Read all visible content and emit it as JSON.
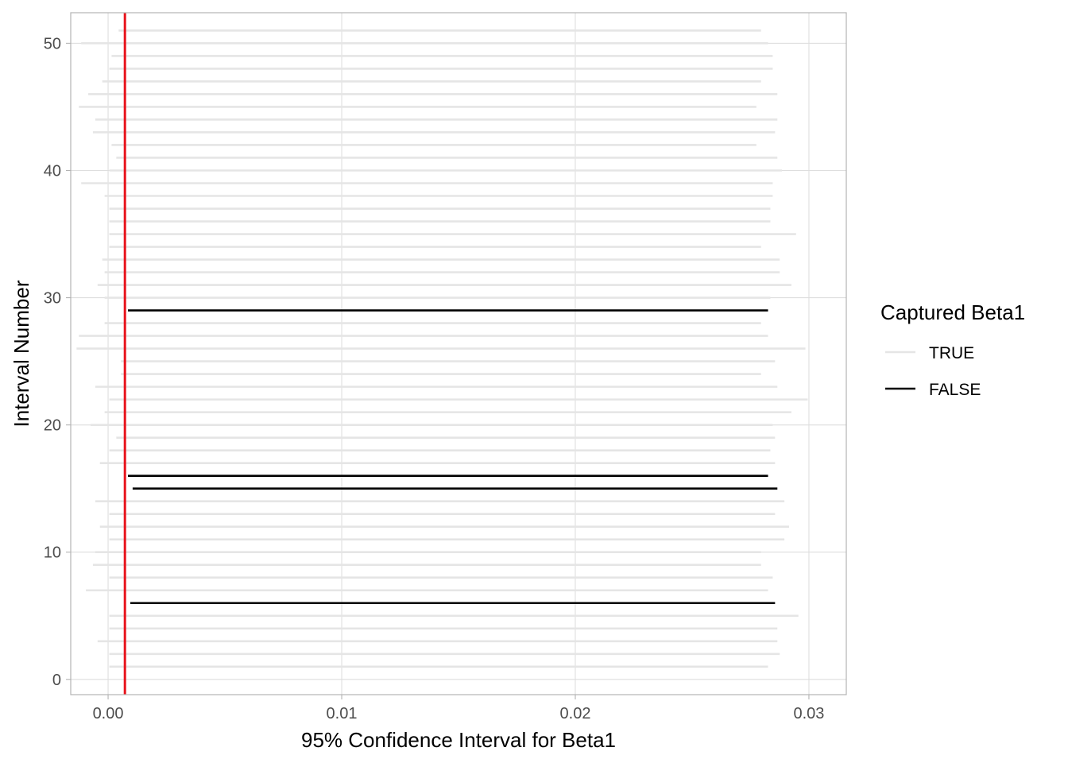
{
  "chart_data": {
    "type": "line",
    "description": "Horizontal segments: one 95% confidence interval per interval number",
    "xlabel": "95% Confidence Interval for Beta1",
    "ylabel": "Interval Number",
    "xlim": [
      -0.0016,
      0.0316
    ],
    "ylim": [
      -1.2,
      52.4
    ],
    "x_ticks": [
      0.0,
      0.01,
      0.02,
      0.03
    ],
    "x_tick_labels": [
      "0.00",
      "0.01",
      "0.02",
      "0.03"
    ],
    "y_ticks": [
      0,
      10,
      20,
      30,
      40,
      50
    ],
    "y_tick_labels": [
      "0",
      "10",
      "20",
      "30",
      "40",
      "50"
    ],
    "grid": true,
    "reference_line": {
      "x": 0.00072,
      "color": "#e8141c"
    },
    "legend": {
      "title": "Captured Beta1",
      "placement": "right",
      "entries": [
        {
          "label": "TRUE",
          "color": "#e5e5e5"
        },
        {
          "label": "FALSE",
          "color": "#000000"
        }
      ]
    },
    "colors": {
      "true": "#e5e5e5",
      "false": "#000000",
      "panel_border": "#b3b3b3",
      "grid": "#dedede"
    },
    "intervals": [
      {
        "id": 1,
        "lower": 5e-05,
        "upper": 0.02825,
        "captured": true
      },
      {
        "id": 2,
        "lower": 5e-05,
        "upper": 0.02875,
        "captured": true
      },
      {
        "id": 3,
        "lower": -0.00045,
        "upper": 0.02865,
        "captured": true
      },
      {
        "id": 4,
        "lower": 5e-05,
        "upper": 0.02865,
        "captured": true
      },
      {
        "id": 5,
        "lower": 5e-05,
        "upper": 0.02955,
        "captured": true
      },
      {
        "id": 6,
        "lower": 0.00095,
        "upper": 0.02855,
        "captured": false
      },
      {
        "id": 7,
        "lower": -0.00095,
        "upper": 0.02825,
        "captured": true
      },
      {
        "id": 8,
        "lower": 5e-05,
        "upper": 0.02845,
        "captured": true
      },
      {
        "id": 9,
        "lower": -0.00065,
        "upper": 0.02795,
        "captured": true
      },
      {
        "id": 10,
        "lower": -0.00055,
        "upper": 0.02795,
        "captured": true
      },
      {
        "id": 11,
        "lower": 5e-05,
        "upper": 0.02895,
        "captured": true
      },
      {
        "id": 12,
        "lower": -0.00035,
        "upper": 0.02915,
        "captured": true
      },
      {
        "id": 13,
        "lower": 5e-05,
        "upper": 0.02855,
        "captured": true
      },
      {
        "id": 14,
        "lower": -0.00055,
        "upper": 0.02895,
        "captured": true
      },
      {
        "id": 15,
        "lower": 0.00105,
        "upper": 0.02865,
        "captured": false
      },
      {
        "id": 16,
        "lower": 0.00085,
        "upper": 0.02825,
        "captured": false
      },
      {
        "id": 17,
        "lower": -0.00035,
        "upper": 0.02855,
        "captured": true
      },
      {
        "id": 18,
        "lower": 5e-05,
        "upper": 0.02835,
        "captured": true
      },
      {
        "id": 19,
        "lower": 0.00035,
        "upper": 0.02855,
        "captured": true
      },
      {
        "id": 20,
        "lower": -0.00075,
        "upper": 0.02845,
        "captured": true
      },
      {
        "id": 21,
        "lower": -0.00015,
        "upper": 0.02925,
        "captured": true
      },
      {
        "id": 22,
        "lower": 5e-05,
        "upper": 0.02995,
        "captured": true
      },
      {
        "id": 23,
        "lower": -0.00055,
        "upper": 0.02865,
        "captured": true
      },
      {
        "id": 24,
        "lower": 0.00055,
        "upper": 0.02795,
        "captured": true
      },
      {
        "id": 25,
        "lower": 0.00055,
        "upper": 0.02855,
        "captured": true
      },
      {
        "id": 26,
        "lower": -0.00135,
        "upper": 0.02985,
        "captured": true
      },
      {
        "id": 27,
        "lower": -0.00125,
        "upper": 0.02825,
        "captured": true
      },
      {
        "id": 28,
        "lower": -0.00015,
        "upper": 0.02795,
        "captured": true
      },
      {
        "id": 29,
        "lower": 0.00085,
        "upper": 0.02825,
        "captured": false
      },
      {
        "id": 30,
        "lower": -0.00015,
        "upper": 0.02835,
        "captured": true
      },
      {
        "id": 31,
        "lower": -0.00045,
        "upper": 0.02925,
        "captured": true
      },
      {
        "id": 32,
        "lower": -0.00015,
        "upper": 0.02875,
        "captured": true
      },
      {
        "id": 33,
        "lower": -0.00025,
        "upper": 0.02875,
        "captured": true
      },
      {
        "id": 34,
        "lower": 5e-05,
        "upper": 0.02795,
        "captured": true
      },
      {
        "id": 35,
        "lower": 5e-05,
        "upper": 0.02945,
        "captured": true
      },
      {
        "id": 36,
        "lower": 5e-05,
        "upper": 0.02835,
        "captured": true
      },
      {
        "id": 37,
        "lower": 5e-05,
        "upper": 0.02835,
        "captured": true
      },
      {
        "id": 38,
        "lower": -0.00015,
        "upper": 0.02845,
        "captured": true
      },
      {
        "id": 39,
        "lower": -0.00115,
        "upper": 0.02845,
        "captured": true
      },
      {
        "id": 40,
        "lower": 5e-05,
        "upper": 0.02885,
        "captured": true
      },
      {
        "id": 41,
        "lower": 0.00035,
        "upper": 0.02865,
        "captured": true
      },
      {
        "id": 42,
        "lower": 0.00015,
        "upper": 0.02775,
        "captured": true
      },
      {
        "id": 43,
        "lower": -0.00065,
        "upper": 0.02855,
        "captured": true
      },
      {
        "id": 44,
        "lower": -0.00055,
        "upper": 0.02865,
        "captured": true
      },
      {
        "id": 45,
        "lower": -0.00125,
        "upper": 0.02775,
        "captured": true
      },
      {
        "id": 46,
        "lower": -0.00085,
        "upper": 0.02865,
        "captured": true
      },
      {
        "id": 47,
        "lower": -0.00025,
        "upper": 0.02795,
        "captured": true
      },
      {
        "id": 48,
        "lower": 5e-05,
        "upper": 0.02845,
        "captured": true
      },
      {
        "id": 49,
        "lower": 0.00015,
        "upper": 0.02845,
        "captured": true
      },
      {
        "id": 50,
        "lower": -0.00115,
        "upper": 0.02825,
        "captured": true
      },
      {
        "id": 51,
        "lower": 0.00045,
        "upper": 0.02795,
        "captured": true
      }
    ]
  }
}
